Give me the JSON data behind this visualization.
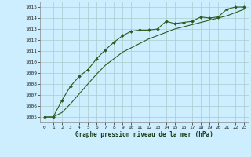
{
  "title": "Graphe pression niveau de la mer (hPa)",
  "bg_color": "#cceeff",
  "grid_color": "#aacccc",
  "line_color": "#2d5a1b",
  "xlim": [
    -0.5,
    23.5
  ],
  "ylim": [
    1004.5,
    1015.5
  ],
  "xticks": [
    0,
    1,
    2,
    3,
    4,
    5,
    6,
    7,
    8,
    9,
    10,
    11,
    12,
    13,
    14,
    15,
    16,
    17,
    18,
    19,
    20,
    21,
    22,
    23
  ],
  "yticks": [
    1005,
    1006,
    1007,
    1008,
    1009,
    1010,
    1011,
    1012,
    1013,
    1014,
    1015
  ],
  "series1_x": [
    0,
    1,
    2,
    3,
    4,
    5,
    6,
    7,
    8,
    9,
    10,
    11,
    12,
    13,
    14,
    15,
    16,
    17,
    18,
    19,
    20,
    21,
    22,
    23
  ],
  "series1_y": [
    1005.0,
    1005.0,
    1006.5,
    1007.8,
    1008.7,
    1009.3,
    1010.3,
    1011.1,
    1011.8,
    1012.4,
    1012.8,
    1012.9,
    1012.9,
    1013.0,
    1013.7,
    1013.5,
    1013.6,
    1013.7,
    1014.1,
    1014.0,
    1014.1,
    1014.8,
    1015.0,
    1015.0
  ],
  "series2_x": [
    0,
    1,
    2,
    3,
    4,
    5,
    6,
    7,
    8,
    9,
    10,
    11,
    12,
    13,
    14,
    15,
    16,
    17,
    18,
    19,
    20,
    21,
    22,
    23
  ],
  "series2_y": [
    1005.0,
    1005.0,
    1005.4,
    1006.2,
    1007.1,
    1008.0,
    1008.9,
    1009.7,
    1010.3,
    1010.9,
    1011.3,
    1011.7,
    1012.1,
    1012.4,
    1012.7,
    1013.0,
    1013.2,
    1013.4,
    1013.6,
    1013.8,
    1014.0,
    1014.2,
    1014.5,
    1014.8
  ]
}
